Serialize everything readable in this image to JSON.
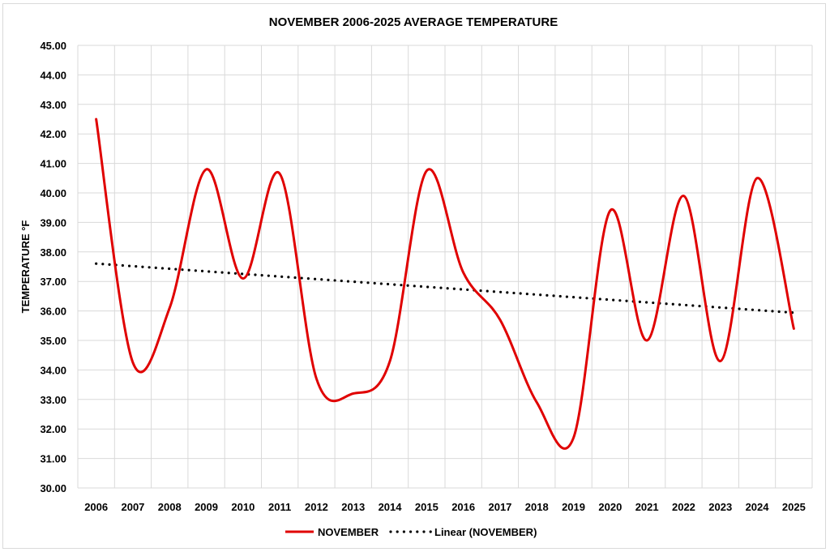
{
  "chart_data": {
    "type": "line",
    "title": "NOVEMBER 2006-2025 AVERAGE TEMPERATURE",
    "xlabel": "",
    "ylabel": "TEMPERATURE °F",
    "categories": [
      "2006",
      "2007",
      "2008",
      "2009",
      "2010",
      "2011",
      "2012",
      "2013",
      "2014",
      "2015",
      "2016",
      "2017",
      "2018",
      "2019",
      "2020",
      "2021",
      "2022",
      "2023",
      "2024",
      "2025"
    ],
    "series": [
      {
        "name": "NOVEMBER",
        "color": "#e00000",
        "style": "smooth-solid",
        "values": [
          42.5,
          34.25,
          36.1,
          40.8,
          37.1,
          40.65,
          33.7,
          33.2,
          34.3,
          40.75,
          37.3,
          35.7,
          32.9,
          31.7,
          39.4,
          35.0,
          39.9,
          34.3,
          40.5,
          35.4
        ]
      },
      {
        "name": "Linear (NOVEMBER)",
        "color": "#000000",
        "style": "dotted",
        "trendline_of": "NOVEMBER"
      }
    ],
    "ylim": [
      30,
      45
    ],
    "y_ticks": [
      "30.00",
      "31.00",
      "32.00",
      "33.00",
      "34.00",
      "35.00",
      "36.00",
      "37.00",
      "38.00",
      "39.00",
      "40.00",
      "41.00",
      "42.00",
      "43.00",
      "44.00",
      "45.00"
    ],
    "grid": true,
    "legend_position": "bottom"
  }
}
